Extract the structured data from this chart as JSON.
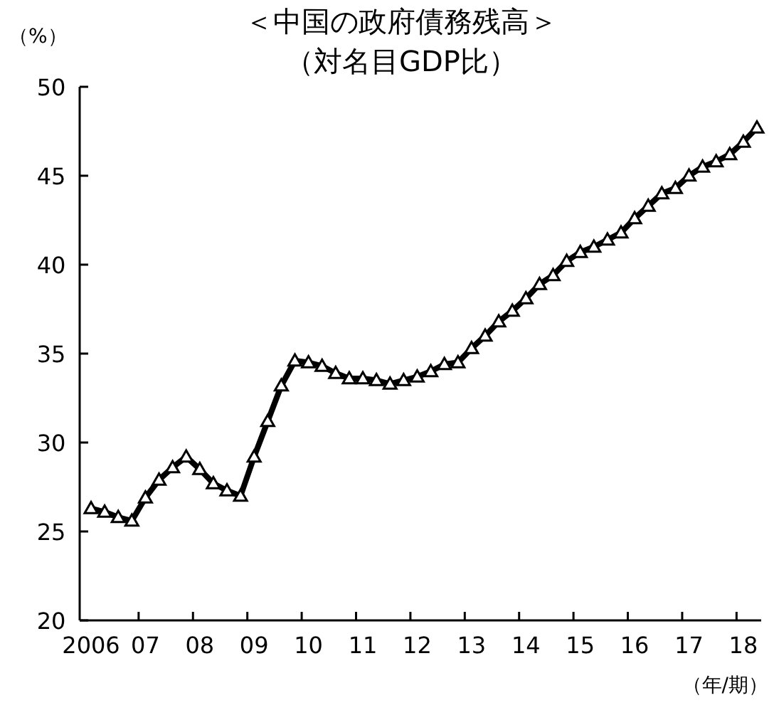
{
  "chart_data": {
    "type": "line",
    "title": "＜中国の政府債務残高＞",
    "subtitle": "（対名目GDP比）",
    "ylabel": "（%）",
    "annotations": [
      "（年/期）"
    ],
    "categories": [
      "2006",
      null,
      null,
      null,
      "07",
      null,
      null,
      null,
      "08",
      null,
      null,
      null,
      "09",
      null,
      null,
      null,
      "10",
      null,
      null,
      null,
      "11",
      null,
      null,
      null,
      "12",
      null,
      null,
      null,
      "13",
      null,
      null,
      null,
      "14",
      null,
      null,
      null,
      "15",
      null,
      null,
      null,
      "16",
      null,
      null,
      null,
      "17",
      null,
      null,
      null,
      "18",
      null
    ],
    "series": [
      {
        "color": "#000000",
        "values": [
          26.3,
          26.1,
          25.8,
          25.6,
          26.9,
          27.9,
          28.6,
          29.2,
          28.5,
          27.7,
          27.3,
          27.0,
          29.2,
          31.2,
          33.2,
          34.6,
          34.5,
          34.3,
          33.9,
          33.6,
          33.6,
          33.5,
          33.3,
          33.5,
          33.7,
          34.0,
          34.4,
          34.5,
          35.3,
          36.0,
          36.8,
          37.4,
          38.1,
          38.9,
          39.4,
          40.2,
          40.7,
          41.0,
          41.4,
          41.8,
          42.6,
          43.3,
          44.0,
          44.3,
          45.0,
          45.5,
          45.8,
          46.2,
          46.9,
          47.7
        ]
      }
    ],
    "ylim": [
      20,
      50
    ],
    "yticks": [
      20,
      25,
      30,
      35,
      40,
      45,
      50
    ],
    "grid": false,
    "marker": "triangle",
    "line_style": "solid"
  }
}
